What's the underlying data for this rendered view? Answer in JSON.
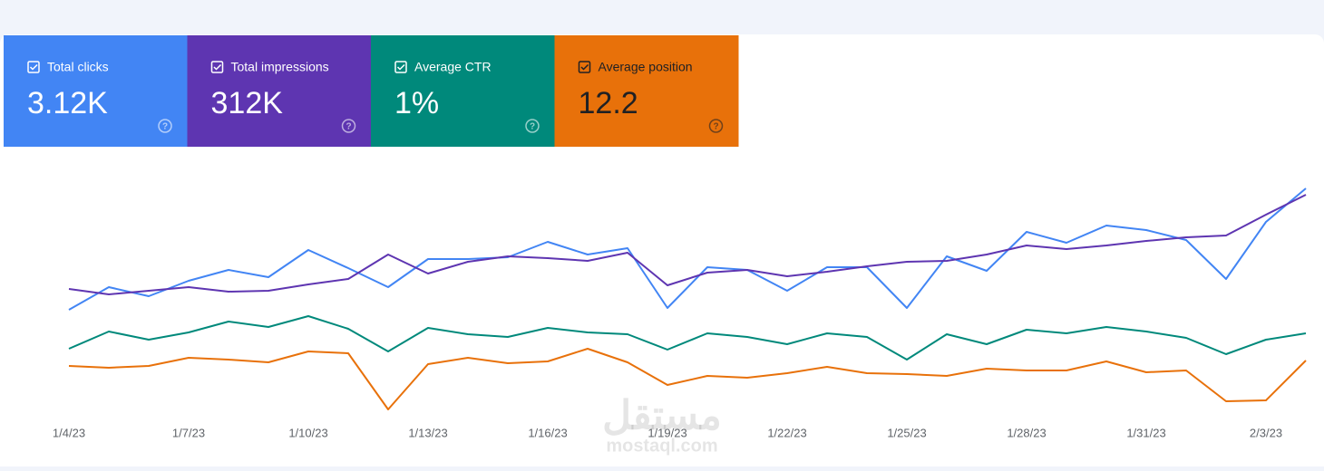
{
  "chart_data": {
    "type": "line",
    "categories": [
      "1/4/23",
      null,
      null,
      "1/7/23",
      null,
      null,
      "1/10/23",
      null,
      null,
      "1/13/23",
      null,
      null,
      "1/16/23",
      null,
      null,
      "1/19/23",
      null,
      null,
      "1/22/23",
      null,
      null,
      "1/25/23",
      null,
      null,
      "1/28/23",
      null,
      null,
      "1/31/23",
      null,
      null,
      "2/3/23",
      null
    ],
    "ylim": [
      0,
      300
    ],
    "series": [
      {
        "name": "Total clicks",
        "total": "3.12K",
        "color": "#4285f4",
        "values": [
          128,
          153,
          143,
          160,
          172,
          164,
          194,
          174,
          153,
          184,
          184,
          186,
          203,
          189,
          196,
          130,
          175,
          172,
          149,
          175,
          175,
          130,
          187,
          171,
          214,
          202,
          221,
          216,
          205,
          162,
          225,
          262
        ]
      },
      {
        "name": "Total impressions",
        "total": "312K",
        "color": "#5e35b1",
        "values": [
          151,
          145,
          149,
          153,
          148,
          149,
          156,
          162,
          189,
          168,
          181,
          187,
          185,
          182,
          191,
          155,
          169,
          172,
          165,
          170,
          176,
          181,
          182,
          189,
          199,
          195,
          199,
          204,
          208,
          210,
          233,
          255
        ]
      },
      {
        "name": "Average CTR",
        "total": "1%",
        "color": "#00897b",
        "values": [
          85,
          104,
          95,
          103,
          115,
          109,
          121,
          107,
          82,
          108,
          101,
          98,
          108,
          103,
          101,
          84,
          102,
          98,
          90,
          102,
          98,
          73,
          101,
          90,
          106,
          102,
          109,
          104,
          97,
          79,
          95,
          102
        ]
      },
      {
        "name": "Average position",
        "total": "12.2",
        "color": "#e8710a",
        "values": [
          66,
          64,
          66,
          75,
          73,
          70,
          82,
          80,
          18,
          68,
          75,
          69,
          71,
          85,
          70,
          45,
          55,
          53,
          58,
          65,
          58,
          57,
          55,
          63,
          61,
          61,
          71,
          59,
          61,
          27,
          28,
          72
        ]
      }
    ]
  },
  "watermark": {
    "arabic": "مستقل",
    "site": "mostaql.com"
  }
}
